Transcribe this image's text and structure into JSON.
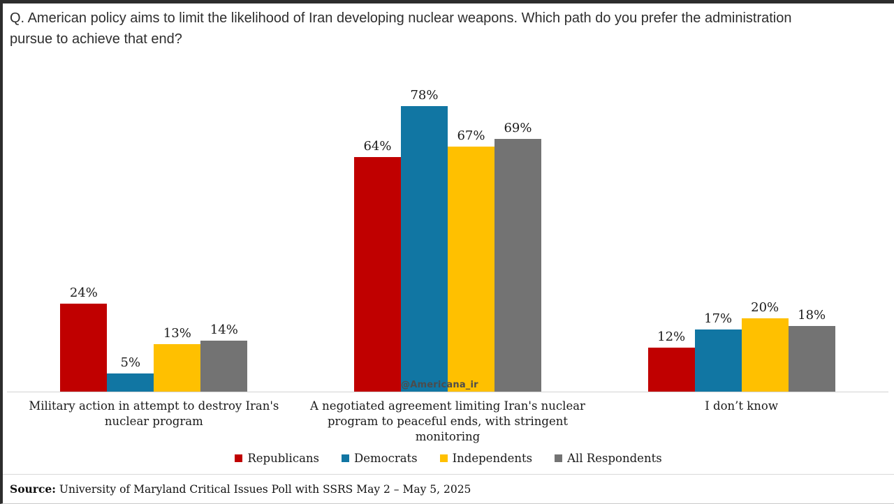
{
  "title": "Q. American policy aims to limit the likelihood of Iran developing nuclear weapons. Which path do you prefer the administration pursue to achieve that end?",
  "watermark": "@Americana_ir",
  "source": {
    "prefix": "Source:",
    "text": " University of Maryland Critical Issues Poll with SSRS May 2 – May 5, 2025"
  },
  "chart_data": {
    "type": "bar",
    "title": "Q. American policy aims to limit the likelihood of Iran developing nuclear weapons. Which path do you prefer the administration pursue to achieve that end?",
    "categories": [
      "Military action in attempt to destroy Iran's nuclear program",
      "A negotiated agreement limiting Iran's nuclear program to peaceful ends, with stringent monitoring",
      "I don’t know"
    ],
    "series": [
      {
        "name": "Republicans",
        "color": "#C00000",
        "values": [
          24,
          64,
          12
        ]
      },
      {
        "name": "Democrats",
        "color": "#1176A3",
        "values": [
          5,
          78,
          17
        ]
      },
      {
        "name": "Independents",
        "color": "#FFC000",
        "values": [
          13,
          67,
          20
        ]
      },
      {
        "name": "All Respondents",
        "color": "#737373",
        "values": [
          14,
          69,
          18
        ]
      }
    ],
    "value_suffix": "%",
    "xlabel": "",
    "ylabel": "",
    "ylim": [
      0,
      85
    ],
    "grid": false,
    "data_labels": true,
    "legend_position": "bottom",
    "axis_line_color": "#d2d2d2"
  }
}
